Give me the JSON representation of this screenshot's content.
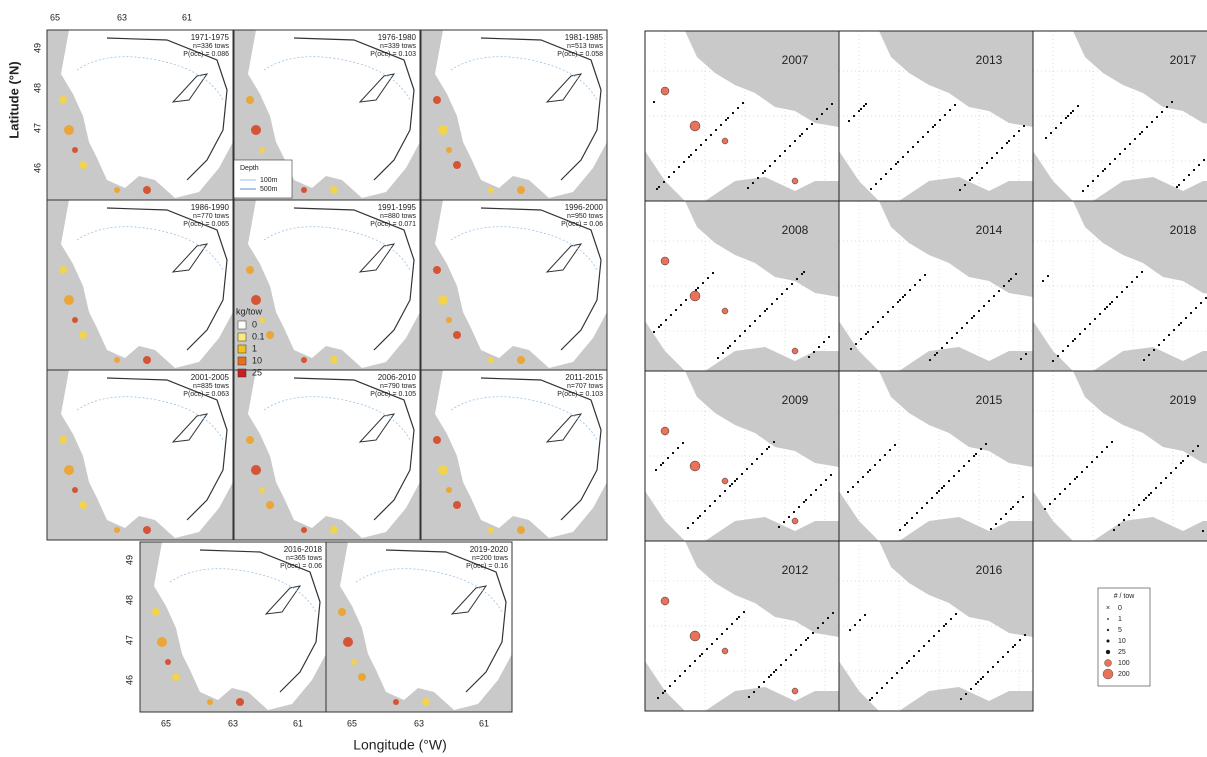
{
  "left_figure": {
    "y_axis_label": "Latitude (°N)",
    "x_axis_label": "Longitude (°W)",
    "lon_ticks": [
      "65",
      "63",
      "61"
    ],
    "lat_ticks": [
      "49",
      "48",
      "47",
      "46"
    ],
    "panels": [
      {
        "period": "1971-1975",
        "n": "n=336 tows",
        "p": "P(occ) = 0.086"
      },
      {
        "period": "1976-1980",
        "n": "n=339 tows",
        "p": "P(occ) = 0.103"
      },
      {
        "period": "1981-1985",
        "n": "n=513 tows",
        "p": "P(occ) = 0.058"
      },
      {
        "period": "1986-1990",
        "n": "n=770 tows",
        "p": "P(occ) = 0.065"
      },
      {
        "period": "1991-1995",
        "n": "n=880 tows",
        "p": "P(occ) = 0.071"
      },
      {
        "period": "1996-2000",
        "n": "n=950 tows",
        "p": "P(occ) = 0.06"
      },
      {
        "period": "2001-2005",
        "n": "n=835 tows",
        "p": "P(occ) = 0.063"
      },
      {
        "period": "2006-2010",
        "n": "n=790 tows",
        "p": "P(occ) = 0.105"
      },
      {
        "period": "2011-2015",
        "n": "n=707 tows",
        "p": "P(occ) = 0.103"
      },
      {
        "period": "2016-2018",
        "n": "n=365 tows",
        "p": "P(occ) = 0.06"
      },
      {
        "period": "2019-2020",
        "n": "n=200 tows",
        "p": "P(occ) = 0.16"
      }
    ],
    "depth_legend": {
      "title": "Depth",
      "items": [
        "100m",
        "500m"
      ]
    },
    "kg_legend": {
      "title": "kg/tow",
      "items": [
        "0",
        "0.1",
        "1",
        "10",
        "25"
      ]
    }
  },
  "right_figure": {
    "panels": [
      "2007",
      "2013",
      "2017",
      "2008",
      "2014",
      "2018",
      "2009",
      "2015",
      "2019",
      "2012",
      "2016"
    ],
    "legend": {
      "title": "# / tow",
      "items": [
        "0",
        "1",
        "5",
        "10",
        "25",
        "100",
        "200"
      ]
    }
  }
}
